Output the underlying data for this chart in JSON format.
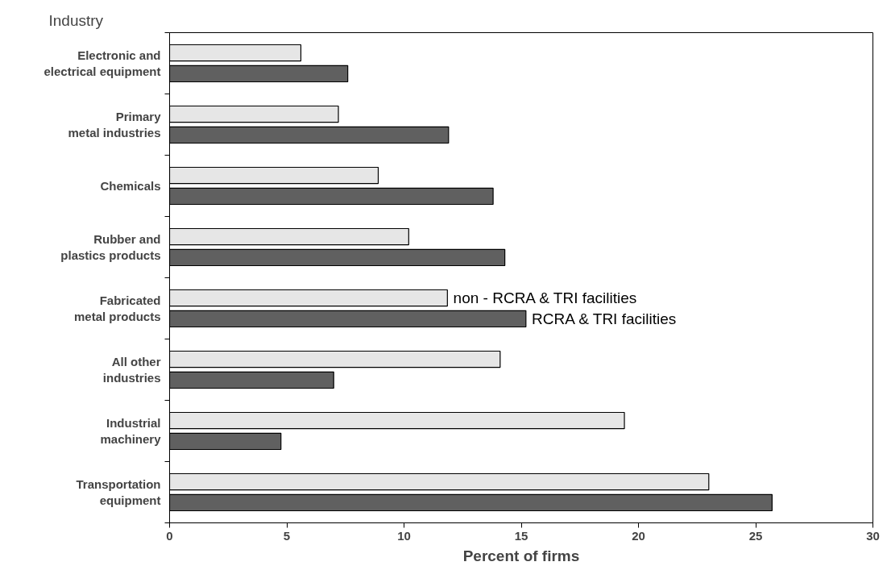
{
  "chart_data": {
    "type": "bar",
    "orientation": "horizontal",
    "ylabel": "Industry",
    "xlabel": "Percent of firms",
    "categories": [
      "Electronic and\nelectrical equipment",
      "Primary\nmetal industries",
      "Chemicals",
      "Rubber and\nplastics products",
      "Fabricated\nmetal products",
      "All other\nindustries",
      "Industrial\nmachinery",
      "Transportation\nequipment"
    ],
    "series": [
      {
        "name": "non - RCRA & TRI facilities",
        "color": "#e6e6e6",
        "values": [
          5.6,
          7.2,
          8.9,
          10.2,
          11.85,
          14.1,
          19.4,
          23.0
        ]
      },
      {
        "name": "RCRA & TRI facilities",
        "color": "#606060",
        "values": [
          7.6,
          11.9,
          13.8,
          14.3,
          15.2,
          7.0,
          4.75,
          25.7
        ]
      }
    ],
    "xlim": [
      0,
      30
    ],
    "xticks": [
      0,
      5,
      10,
      15,
      20,
      25,
      30
    ],
    "grid": false
  }
}
